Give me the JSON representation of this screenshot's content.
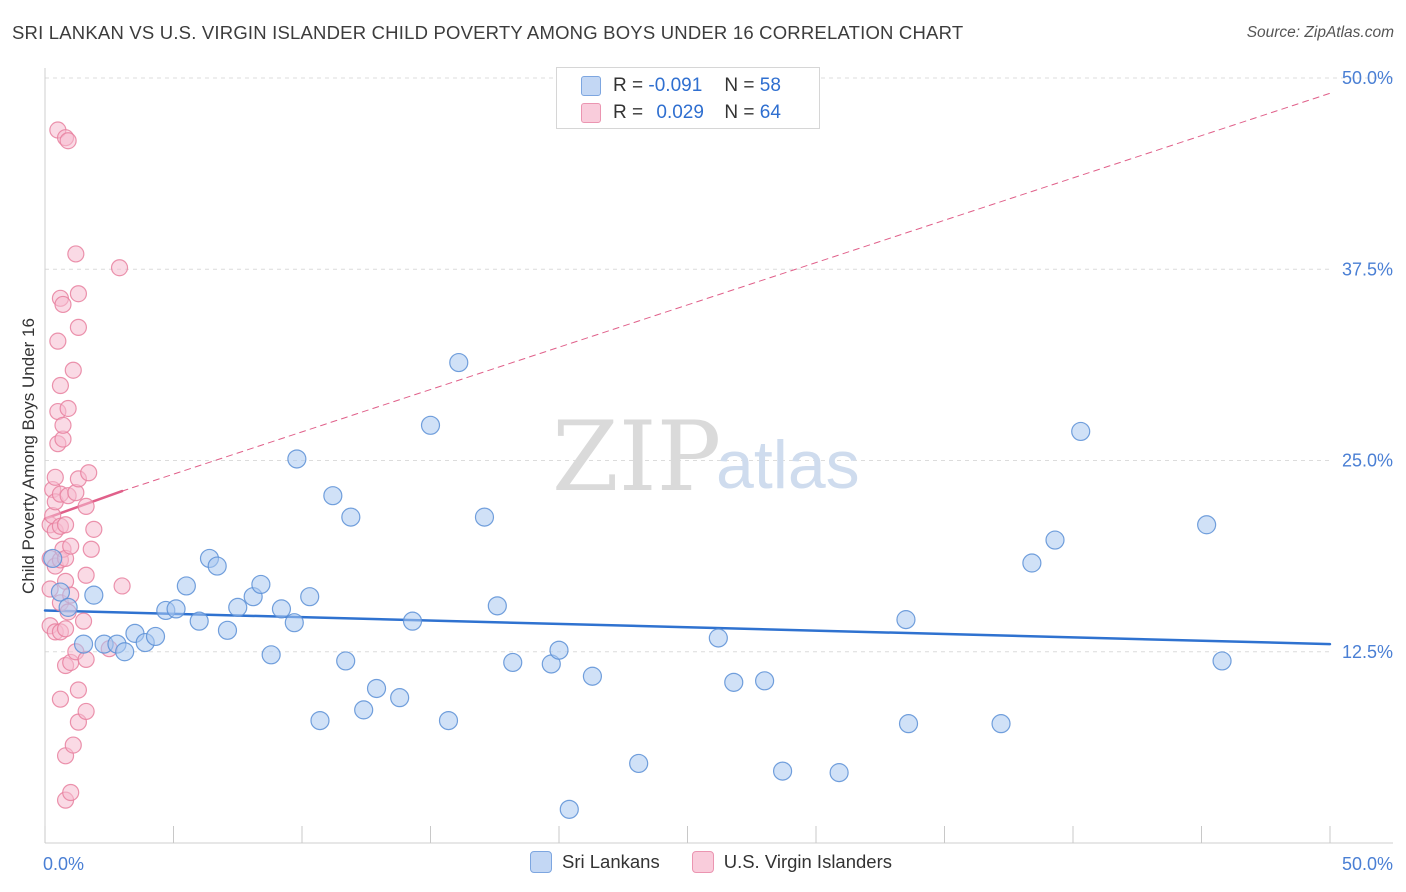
{
  "header": {
    "title": "SRI LANKAN VS U.S. VIRGIN ISLANDER CHILD POVERTY AMONG BOYS UNDER 16 CORRELATION CHART",
    "source": "Source: ZipAtlas.com"
  },
  "watermark": {
    "zip": "ZIP",
    "atlas": "atlas"
  },
  "legend_top": {
    "rows": [
      {
        "r_label": "R =",
        "r_value": "-0.091",
        "n_label": "N =",
        "n_value": "58"
      },
      {
        "r_label": "R =",
        "r_value": "0.029",
        "n_label": "N =",
        "n_value": "64"
      }
    ]
  },
  "legend_bottom": {
    "items": [
      {
        "label": "Sri Lankans"
      },
      {
        "label": "U.S. Virgin Islanders"
      }
    ]
  },
  "colors": {
    "blue_fill": "#aac8f0",
    "blue_stroke": "#5b8fd6",
    "blue_line": "#2f72d0",
    "pink_fill": "#f6bcd0",
    "pink_stroke": "#e8809f",
    "pink_line": "#e0608a",
    "grid": "#dcdcdc",
    "axis_text": "#4a7fd4"
  },
  "chart_data": {
    "type": "scatter",
    "title": "SRI LANKAN VS U.S. VIRGIN ISLANDER CHILD POVERTY AMONG BOYS UNDER 16 CORRELATION CHART",
    "xlabel": "",
    "ylabel": "Child Poverty Among Boys Under 16",
    "xlim": [
      0,
      50
    ],
    "ylim": [
      0,
      50
    ],
    "x_tick_labels": [
      "0.0%",
      "50.0%"
    ],
    "y_tick_labels": [
      "12.5%",
      "25.0%",
      "37.5%",
      "50.0%"
    ],
    "y_ticks": [
      12.5,
      25.0,
      37.5,
      50.0
    ],
    "grid": true,
    "series": [
      {
        "name": "Sri Lankans",
        "color": "blue",
        "points": [
          [
            0.3,
            18.6
          ],
          [
            0.6,
            16.4
          ],
          [
            0.9,
            15.4
          ],
          [
            1.5,
            13.0
          ],
          [
            1.9,
            16.2
          ],
          [
            2.3,
            13.0
          ],
          [
            2.8,
            13.0
          ],
          [
            3.1,
            12.5
          ],
          [
            3.5,
            13.7
          ],
          [
            3.9,
            13.1
          ],
          [
            4.3,
            13.5
          ],
          [
            4.7,
            15.2
          ],
          [
            5.1,
            15.3
          ],
          [
            5.5,
            16.8
          ],
          [
            6.0,
            14.5
          ],
          [
            6.4,
            18.6
          ],
          [
            6.7,
            18.1
          ],
          [
            7.1,
            13.9
          ],
          [
            7.5,
            15.4
          ],
          [
            8.1,
            16.1
          ],
          [
            8.4,
            16.9
          ],
          [
            8.8,
            12.3
          ],
          [
            9.2,
            15.3
          ],
          [
            9.7,
            14.4
          ],
          [
            9.8,
            25.1
          ],
          [
            10.3,
            16.1
          ],
          [
            10.7,
            8.0
          ],
          [
            11.2,
            22.7
          ],
          [
            11.7,
            11.9
          ],
          [
            11.9,
            21.3
          ],
          [
            12.4,
            8.7
          ],
          [
            12.9,
            10.1
          ],
          [
            13.8,
            9.5
          ],
          [
            14.3,
            14.5
          ],
          [
            15.0,
            27.3
          ],
          [
            15.7,
            8.0
          ],
          [
            16.1,
            31.4
          ],
          [
            17.1,
            21.3
          ],
          [
            17.6,
            15.5
          ],
          [
            18.2,
            11.8
          ],
          [
            19.7,
            11.7
          ],
          [
            20.0,
            12.6
          ],
          [
            20.4,
            2.2
          ],
          [
            21.3,
            10.9
          ],
          [
            23.1,
            5.2
          ],
          [
            26.2,
            13.4
          ],
          [
            26.8,
            10.5
          ],
          [
            28.0,
            10.6
          ],
          [
            28.7,
            4.7
          ],
          [
            30.9,
            4.6
          ],
          [
            33.5,
            14.6
          ],
          [
            33.6,
            7.8
          ],
          [
            37.2,
            7.8
          ],
          [
            38.4,
            18.3
          ],
          [
            39.3,
            19.8
          ],
          [
            40.3,
            26.9
          ],
          [
            45.2,
            20.8
          ],
          [
            45.8,
            11.9
          ]
        ]
      },
      {
        "name": "U.S. Virgin Islanders",
        "color": "pink",
        "points": [
          [
            0.2,
            14.2
          ],
          [
            0.2,
            16.6
          ],
          [
            0.2,
            18.6
          ],
          [
            0.2,
            20.8
          ],
          [
            0.3,
            21.4
          ],
          [
            0.3,
            23.1
          ],
          [
            0.4,
            13.8
          ],
          [
            0.4,
            18.1
          ],
          [
            0.4,
            20.4
          ],
          [
            0.4,
            22.3
          ],
          [
            0.4,
            23.9
          ],
          [
            0.5,
            26.1
          ],
          [
            0.5,
            28.2
          ],
          [
            0.5,
            32.8
          ],
          [
            0.5,
            46.6
          ],
          [
            0.6,
            9.4
          ],
          [
            0.6,
            13.8
          ],
          [
            0.6,
            15.7
          ],
          [
            0.6,
            18.5
          ],
          [
            0.6,
            20.7
          ],
          [
            0.6,
            22.8
          ],
          [
            0.6,
            29.9
          ],
          [
            0.6,
            35.6
          ],
          [
            0.7,
            19.2
          ],
          [
            0.7,
            26.4
          ],
          [
            0.7,
            27.3
          ],
          [
            0.7,
            35.2
          ],
          [
            0.8,
            2.8
          ],
          [
            0.8,
            5.7
          ],
          [
            0.8,
            11.6
          ],
          [
            0.8,
            14.0
          ],
          [
            0.8,
            17.1
          ],
          [
            0.8,
            18.6
          ],
          [
            0.8,
            20.8
          ],
          [
            0.8,
            46.1
          ],
          [
            0.9,
            15.1
          ],
          [
            0.9,
            22.7
          ],
          [
            0.9,
            28.4
          ],
          [
            0.9,
            45.9
          ],
          [
            1.0,
            3.3
          ],
          [
            1.0,
            11.8
          ],
          [
            1.0,
            16.2
          ],
          [
            1.0,
            19.4
          ],
          [
            1.1,
            6.4
          ],
          [
            1.1,
            30.9
          ],
          [
            1.2,
            12.5
          ],
          [
            1.2,
            38.5
          ],
          [
            1.2,
            22.9
          ],
          [
            1.3,
            7.9
          ],
          [
            1.3,
            10.0
          ],
          [
            1.3,
            33.7
          ],
          [
            1.3,
            35.9
          ],
          [
            1.3,
            23.8
          ],
          [
            1.5,
            14.5
          ],
          [
            1.6,
            8.6
          ],
          [
            1.6,
            12.0
          ],
          [
            1.6,
            17.5
          ],
          [
            1.6,
            22.0
          ],
          [
            1.7,
            24.2
          ],
          [
            1.8,
            19.2
          ],
          [
            1.9,
            20.5
          ],
          [
            2.5,
            12.7
          ],
          [
            2.9,
            37.6
          ],
          [
            3.0,
            16.8
          ]
        ]
      }
    ],
    "trend_lines": [
      {
        "series": "Sri Lankans",
        "style": "solid",
        "x": [
          0,
          50
        ],
        "y": [
          15.2,
          13.0
        ]
      },
      {
        "series": "U.S. Virgin Islanders",
        "style": "solid",
        "x": [
          0,
          3.0
        ],
        "y": [
          21.2,
          23.0
        ]
      },
      {
        "series": "U.S. Virgin Islanders",
        "style": "dashed",
        "x": [
          3.0,
          50
        ],
        "y": [
          23.0,
          49.0
        ]
      }
    ]
  }
}
